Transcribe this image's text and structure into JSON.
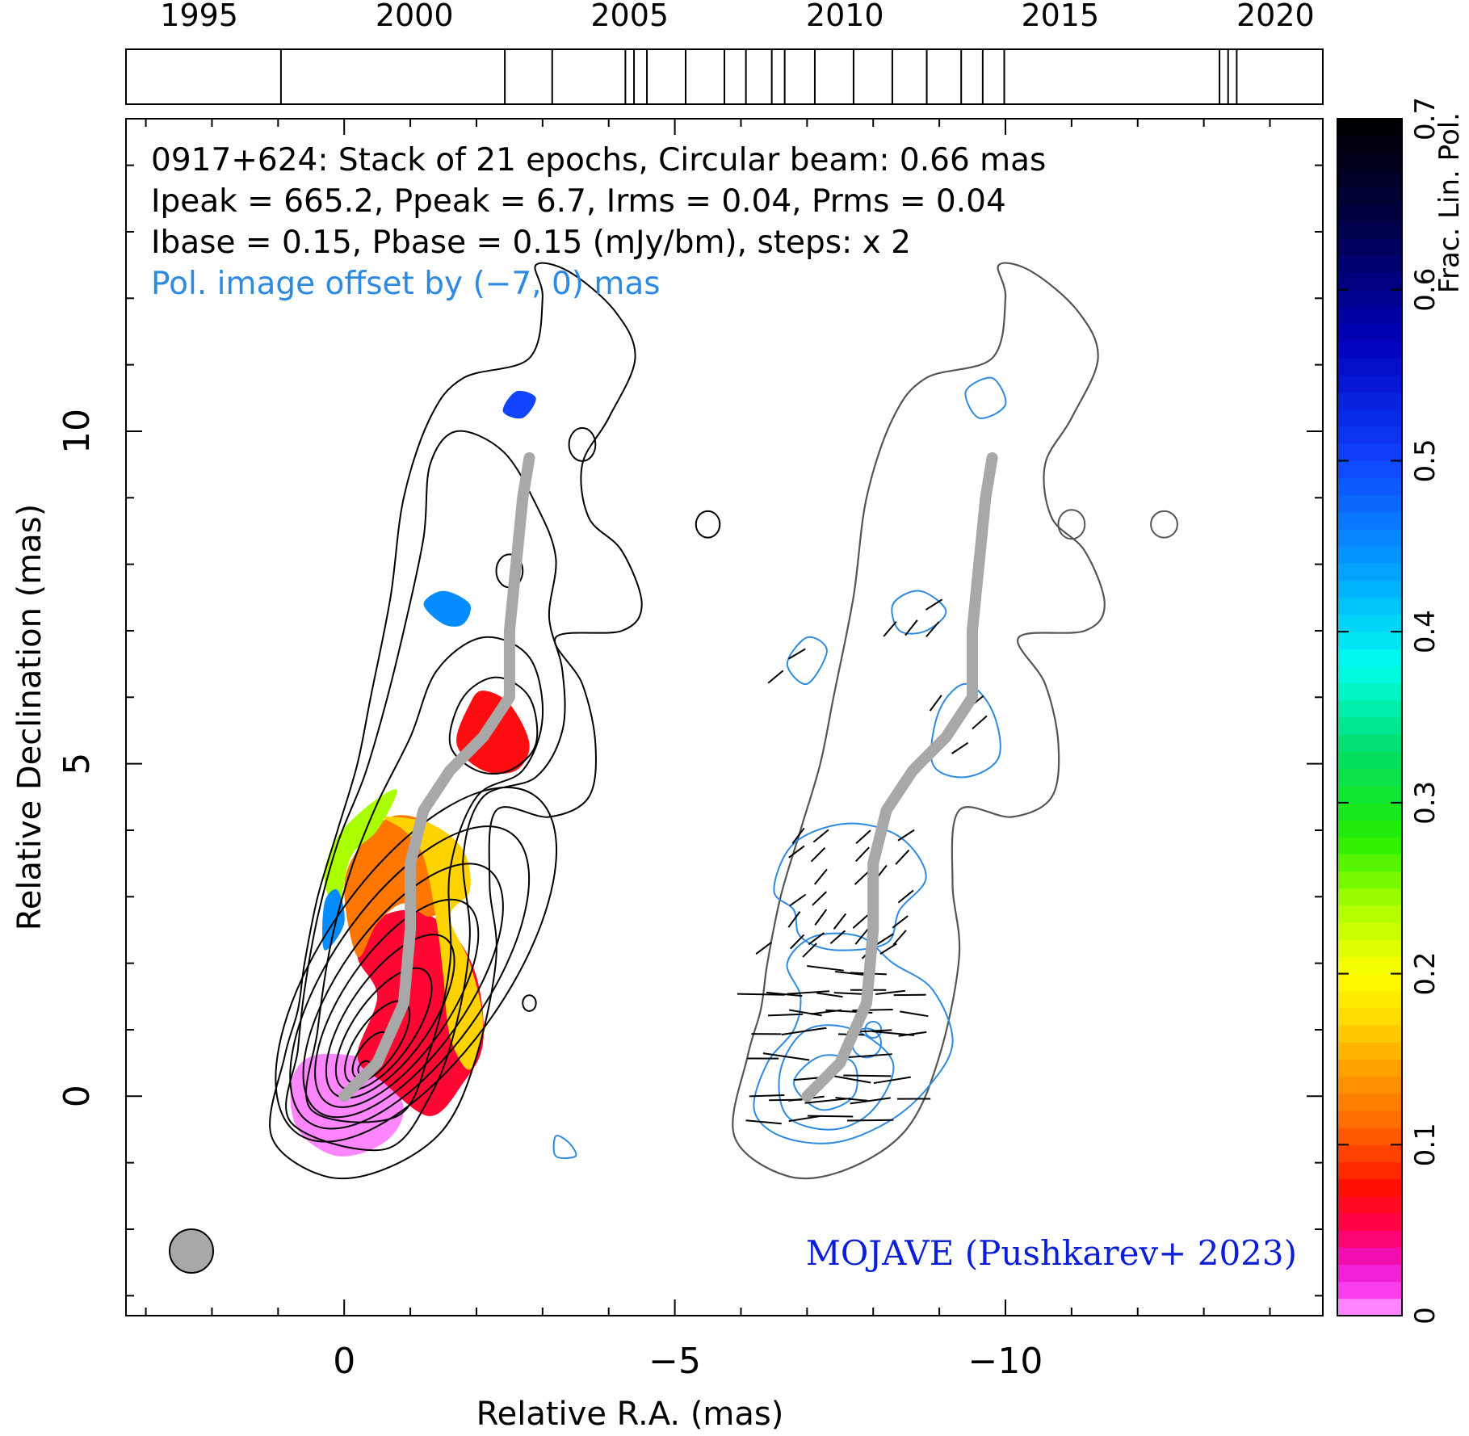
{
  "chart_data": {
    "type": "contour-image",
    "title_lines": [
      "0917+624: Stack of 21 epochs, Circular beam: 0.66 mas",
      "Ipeak = 665.2, Ppeak = 6.7, Irms = 0.04, Prms = 0.04",
      "Ibase = 0.15, Pbase = 0.15 (mJy/bm), steps: x 2"
    ],
    "offset_note": "Pol. image offset by (−7, 0) mas",
    "credit": "MOJAVE (Pushkarev+ 2023)",
    "xlabel": "Relative R.A. (mas)",
    "ylabel": "Relative Declination (mas)",
    "xlim": [
      3.3,
      -14.8
    ],
    "ylim": [
      -3.3,
      14.7
    ],
    "x_ticks": [
      0,
      -5,
      -10
    ],
    "x_tick_labels": [
      "0",
      "−5",
      "−10"
    ],
    "y_ticks": [
      0,
      5,
      10
    ],
    "y_tick_labels": [
      "0",
      "5",
      "10"
    ],
    "timeline": {
      "range": [
        1993.3,
        2021.1
      ],
      "tick_years": [
        1995,
        2000,
        2005,
        2010,
        2015,
        2020
      ],
      "tick_labels": [
        "1995",
        "2000",
        "2005",
        "2010",
        "2015",
        "2020"
      ],
      "epochs": [
        1996.9,
        2002.1,
        2003.2,
        2004.9,
        2005.1,
        2005.4,
        2006.3,
        2007.2,
        2007.7,
        2008.3,
        2008.6,
        2009.3,
        2010.2,
        2011.1,
        2011.9,
        2012.7,
        2013.2,
        2013.7,
        2018.7,
        2018.9,
        2019.1
      ]
    },
    "colorbar": {
      "label": "Frac. Lin. Pol.",
      "min": 0,
      "max": 0.7,
      "ticks": [
        0,
        0.1,
        0.2,
        0.3,
        0.4,
        0.5,
        0.6,
        0.7
      ],
      "tick_labels": [
        "0",
        "0.1",
        "0.2",
        "0.3",
        "0.4",
        "0.5",
        "0.6",
        "0.7"
      ]
    },
    "beam_fwhm_mas": 0.66,
    "pol_offset_mas": [
      -7,
      0
    ],
    "ridgeline": [
      [
        0,
        0
      ],
      [
        -0.5,
        0.5
      ],
      [
        -0.9,
        1.4
      ],
      [
        -1.0,
        2.5
      ],
      [
        -1.0,
        3.5
      ],
      [
        -1.2,
        4.3
      ],
      [
        -1.6,
        4.9
      ],
      [
        -2.1,
        5.4
      ],
      [
        -2.5,
        6.0
      ],
      [
        -2.5,
        7.0
      ],
      [
        -2.6,
        8.0
      ],
      [
        -2.7,
        9.0
      ],
      [
        -2.8,
        9.6
      ]
    ],
    "fpol_regions": [
      {
        "name": "core",
        "value": 0.005,
        "points": [
          [
            0.8,
            0.2
          ],
          [
            0.7,
            -0.5
          ],
          [
            0.1,
            -0.9
          ],
          [
            -0.6,
            -0.7
          ],
          [
            -0.9,
            -0.2
          ],
          [
            -0.6,
            0.4
          ],
          [
            -0.2,
            0.6
          ],
          [
            0.5,
            0.6
          ]
        ]
      },
      {
        "name": "inner-jet-red",
        "value": 0.06,
        "points": [
          [
            -0.2,
            0.6
          ],
          [
            -0.5,
            1.5
          ],
          [
            -0.2,
            2.1
          ],
          [
            -0.4,
            2.6
          ],
          [
            -1.0,
            2.8
          ],
          [
            -1.6,
            2.5
          ],
          [
            -2.0,
            1.8
          ],
          [
            -2.1,
            0.8
          ],
          [
            -1.8,
            0.2
          ],
          [
            -1.3,
            -0.3
          ],
          [
            -0.6,
            0.2
          ]
        ]
      },
      {
        "name": "mid-jet-orange",
        "value": 0.12,
        "points": [
          [
            -0.2,
            2.1
          ],
          [
            0.0,
            3.1
          ],
          [
            -0.2,
            3.7
          ],
          [
            -0.7,
            4.2
          ],
          [
            -1.3,
            4.1
          ],
          [
            -1.8,
            3.6
          ],
          [
            -1.7,
            3.0
          ],
          [
            -1.3,
            2.7
          ],
          [
            -0.9,
            2.9
          ],
          [
            -0.5,
            2.6
          ]
        ]
      },
      {
        "name": "yellow-rim",
        "value": 0.17,
        "points": [
          [
            -0.6,
            4.2
          ],
          [
            -1.3,
            4.1
          ],
          [
            -1.8,
            3.7
          ],
          [
            -1.9,
            3.1
          ],
          [
            -1.6,
            2.7
          ],
          [
            -1.9,
            2.0
          ],
          [
            -2.1,
            1.1
          ],
          [
            -1.9,
            0.4
          ],
          [
            -1.6,
            0.9
          ],
          [
            -1.5,
            1.8
          ],
          [
            -1.4,
            2.6
          ],
          [
            -1.2,
            3.6
          ],
          [
            -0.9,
            4.0
          ]
        ]
      },
      {
        "name": "green-edge",
        "value": 0.24,
        "points": [
          [
            0.1,
            2.8
          ],
          [
            -0.1,
            3.6
          ],
          [
            -0.5,
            4.0
          ],
          [
            -0.8,
            4.6
          ],
          [
            -0.4,
            4.4
          ],
          [
            0.1,
            3.9
          ],
          [
            0.3,
            3.3
          ]
        ]
      },
      {
        "name": "blue-edge",
        "value": 0.45,
        "points": [
          [
            0.3,
            2.2
          ],
          [
            0.3,
            2.9
          ],
          [
            0.1,
            3.1
          ],
          [
            0.0,
            2.6
          ]
        ]
      },
      {
        "name": "knot-A",
        "value": 0.07,
        "points": [
          [
            -1.7,
            5.3
          ],
          [
            -1.9,
            5.9
          ],
          [
            -2.1,
            6.1
          ],
          [
            -2.5,
            5.9
          ],
          [
            -2.8,
            5.3
          ],
          [
            -2.6,
            4.9
          ],
          [
            -2.1,
            4.9
          ]
        ]
      },
      {
        "name": "knot-B",
        "value": 0.45,
        "points": [
          [
            -1.2,
            7.4
          ],
          [
            -1.5,
            7.6
          ],
          [
            -1.9,
            7.4
          ],
          [
            -1.8,
            7.1
          ],
          [
            -1.5,
            7.1
          ]
        ]
      },
      {
        "name": "knot-C",
        "value": 0.5,
        "points": [
          [
            -2.4,
            10.3
          ],
          [
            -2.6,
            10.6
          ],
          [
            -2.9,
            10.5
          ],
          [
            -2.7,
            10.2
          ]
        ]
      }
    ]
  },
  "colors": {
    "total_intensity_contours": "#000000",
    "pol_contours": "#2e8ae0",
    "offset_note": "#2e8ae0",
    "credit": "#0a1ed8",
    "ridgeline": "#a8a8a8",
    "beam": "#a8a8a8",
    "pol_image_outer_contour": "#555555"
  }
}
